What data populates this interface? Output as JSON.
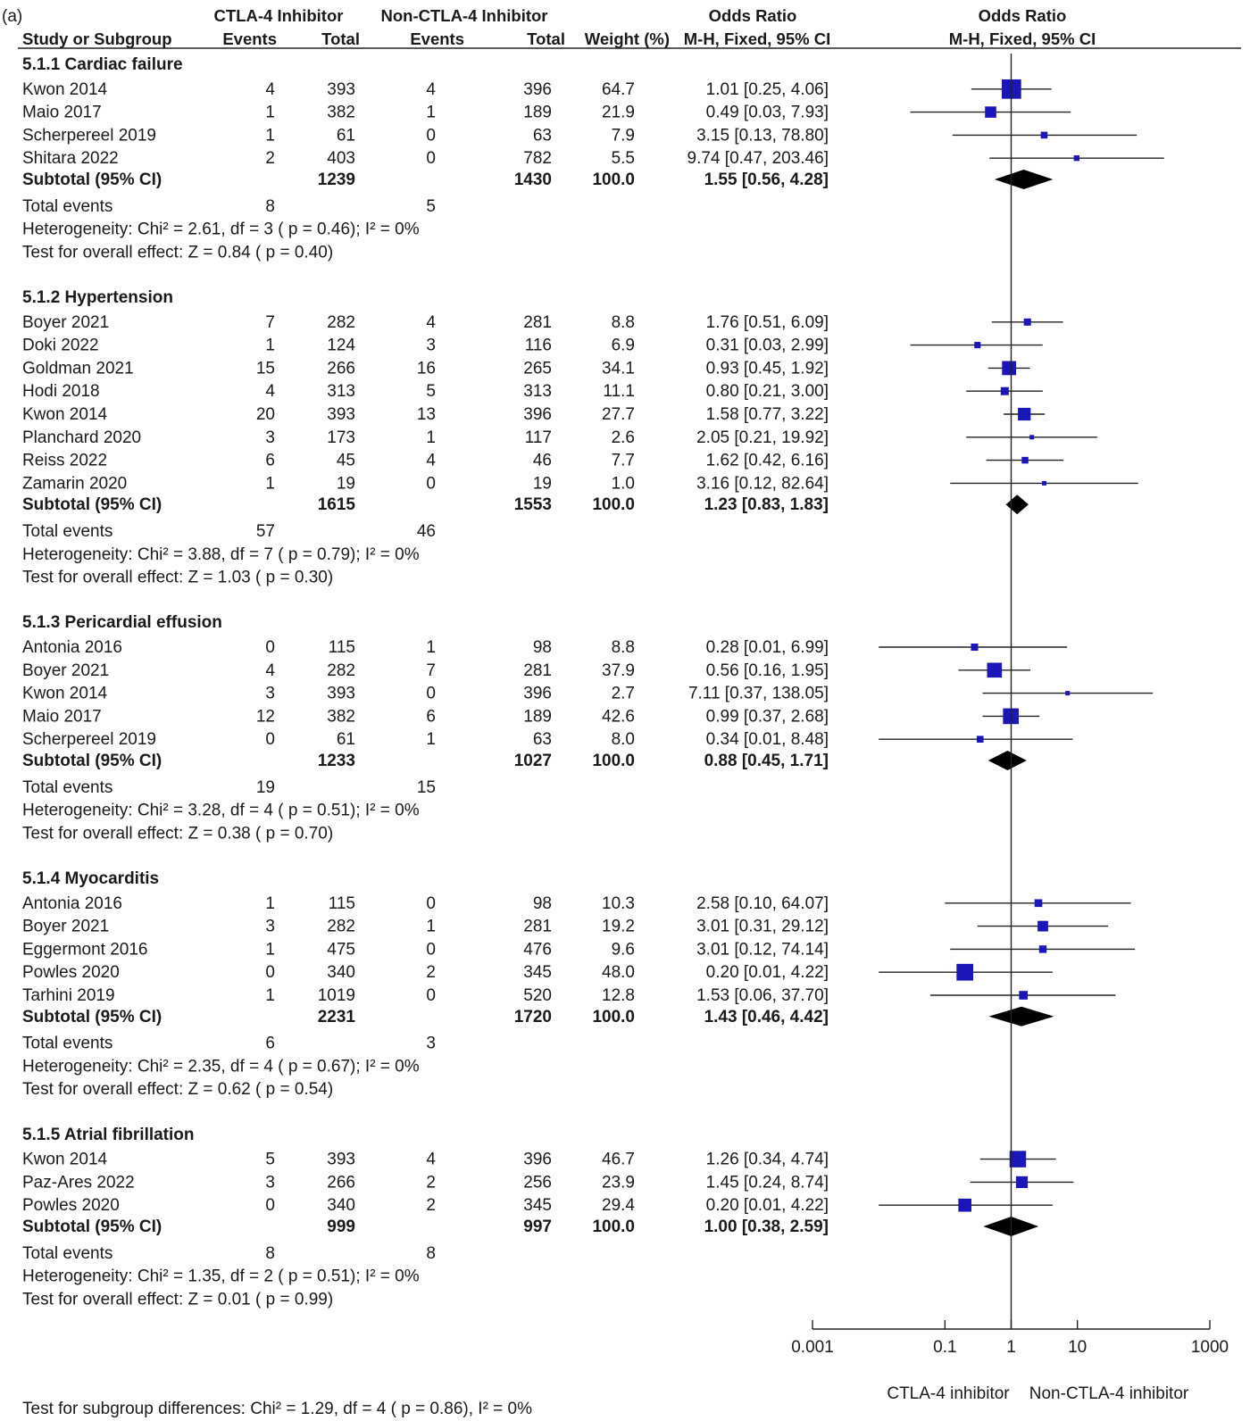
{
  "panel_label": "(a)",
  "header": {
    "group1_title": "CTLA-4 Inhibitor",
    "group2_title": "Non-CTLA-4 Inhibitor",
    "or_text_title": "Odds Ratio",
    "or_plot_title": "Odds Ratio",
    "col_study": "Study or Subgroup",
    "col_events1": "Events",
    "col_total1": "Total",
    "col_events2": "Events",
    "col_total2": "Total",
    "col_weight": "Weight (%)",
    "col_method_text": "M-H, Fixed, 95% CI",
    "col_method_plot": "M-H, Fixed, 95% CI"
  },
  "footer": {
    "subgroup_test": "Test for subgroup differences: Chi² = 1.29, df = 4 ( p = 0.86), I² = 0%",
    "axis_ticks": [
      "0.001",
      "0.1",
      "1",
      "10",
      "1000"
    ],
    "favours_left": "CTLA-4 inhibitor",
    "favours_right": "Non-CTLA-4 inhibitor"
  },
  "colors": {
    "marker": "#1b16b8",
    "diamond": "#000000",
    "line": "#222222"
  },
  "chart_data": {
    "type": "forest",
    "scale": "log",
    "xlim": [
      0.001,
      1000
    ],
    "ticks": [
      0.001,
      0.1,
      1,
      10,
      1000
    ],
    "null_value": 1,
    "subgroups": [
      {
        "title": "5.1.1 Cardiac failure",
        "studies": [
          {
            "name": "Kwon 2014",
            "e1": "4",
            "n1": "393",
            "e2": "4",
            "n2": "396",
            "weight": "64.7",
            "ci_text": "1.01 [0.25, 4.06]",
            "or": 1.01,
            "lo": 0.25,
            "hi": 4.06
          },
          {
            "name": "Maio 2017",
            "e1": "1",
            "n1": "382",
            "e2": "1",
            "n2": "189",
            "weight": "21.9",
            "ci_text": "0.49 [0.03, 7.93]",
            "or": 0.49,
            "lo": 0.03,
            "hi": 7.93
          },
          {
            "name": "Scherpereel 2019",
            "e1": "1",
            "n1": "61",
            "e2": "0",
            "n2": "63",
            "weight": "7.9",
            "ci_text": "3.15 [0.13, 78.80]",
            "or": 3.15,
            "lo": 0.13,
            "hi": 78.8
          },
          {
            "name": "Shitara 2022",
            "e1": "2",
            "n1": "403",
            "e2": "0",
            "n2": "782",
            "weight": "5.5",
            "ci_text": "9.74 [0.47, 203.46]",
            "or": 9.74,
            "lo": 0.47,
            "hi": 203.46
          }
        ],
        "subtotal": {
          "label": "Subtotal (95% CI)",
          "n1": "1239",
          "n2": "1430",
          "weight": "100.0",
          "ci_text": "1.55 [0.56, 4.28]",
          "or": 1.55,
          "lo": 0.56,
          "hi": 4.28
        },
        "total_events": {
          "label": "Total events",
          "e1": "8",
          "e2": "5"
        },
        "heterogeneity": "Heterogeneity: Chi² = 2.61, df = 3 ( p = 0.46); I² = 0%",
        "overall": "Test for overall effect: Z = 0.84 ( p = 0.40)"
      },
      {
        "title": "5.1.2 Hypertension",
        "studies": [
          {
            "name": "Boyer 2021",
            "e1": "7",
            "n1": "282",
            "e2": "4",
            "n2": "281",
            "weight": "8.8",
            "ci_text": "1.76 [0.51, 6.09]",
            "or": 1.76,
            "lo": 0.51,
            "hi": 6.09
          },
          {
            "name": "Doki 2022",
            "e1": "1",
            "n1": "124",
            "e2": "3",
            "n2": "116",
            "weight": "6.9",
            "ci_text": "0.31 [0.03, 2.99]",
            "or": 0.31,
            "lo": 0.03,
            "hi": 2.99
          },
          {
            "name": "Goldman 2021",
            "e1": "15",
            "n1": "266",
            "e2": "16",
            "n2": "265",
            "weight": "34.1",
            "ci_text": "0.93 [0.45, 1.92]",
            "or": 0.93,
            "lo": 0.45,
            "hi": 1.92
          },
          {
            "name": "Hodi 2018",
            "e1": "4",
            "n1": "313",
            "e2": "5",
            "n2": "313",
            "weight": "11.1",
            "ci_text": "0.80 [0.21, 3.00]",
            "or": 0.8,
            "lo": 0.21,
            "hi": 3.0
          },
          {
            "name": "Kwon 2014",
            "e1": "20",
            "n1": "393",
            "e2": "13",
            "n2": "396",
            "weight": "27.7",
            "ci_text": "1.58 [0.77, 3.22]",
            "or": 1.58,
            "lo": 0.77,
            "hi": 3.22
          },
          {
            "name": "Planchard 2020",
            "e1": "3",
            "n1": "173",
            "e2": "1",
            "n2": "117",
            "weight": "2.6",
            "ci_text": "2.05 [0.21, 19.92]",
            "or": 2.05,
            "lo": 0.21,
            "hi": 19.92
          },
          {
            "name": "Reiss 2022",
            "e1": "6",
            "n1": "45",
            "e2": "4",
            "n2": "46",
            "weight": "7.7",
            "ci_text": "1.62 [0.42, 6.16]",
            "or": 1.62,
            "lo": 0.42,
            "hi": 6.16
          },
          {
            "name": "Zamarin 2020",
            "e1": "1",
            "n1": "19",
            "e2": "0",
            "n2": "19",
            "weight": "1.0",
            "ci_text": "3.16 [0.12, 82.64]",
            "or": 3.16,
            "lo": 0.12,
            "hi": 82.64
          }
        ],
        "subtotal": {
          "label": "Subtotal (95% CI)",
          "n1": "1615",
          "n2": "1553",
          "weight": "100.0",
          "ci_text": "1.23 [0.83, 1.83]",
          "or": 1.23,
          "lo": 0.83,
          "hi": 1.83
        },
        "total_events": {
          "label": "Total events",
          "e1": "57",
          "e2": "46"
        },
        "heterogeneity": "Heterogeneity: Chi² = 3.88, df = 7 ( p = 0.79); I² = 0%",
        "overall": "Test for overall effect: Z = 1.03 ( p = 0.30)"
      },
      {
        "title": "5.1.3 Pericardial effusion",
        "studies": [
          {
            "name": "Antonia 2016",
            "e1": "0",
            "n1": "115",
            "e2": "1",
            "n2": "98",
            "weight": "8.8",
            "ci_text": "0.28 [0.01, 6.99]",
            "or": 0.28,
            "lo": 0.01,
            "hi": 6.99
          },
          {
            "name": "Boyer 2021",
            "e1": "4",
            "n1": "282",
            "e2": "7",
            "n2": "281",
            "weight": "37.9",
            "ci_text": "0.56 [0.16, 1.95]",
            "or": 0.56,
            "lo": 0.16,
            "hi": 1.95
          },
          {
            "name": "Kwon 2014",
            "e1": "3",
            "n1": "393",
            "e2": "0",
            "n2": "396",
            "weight": "2.7",
            "ci_text": "7.11 [0.37, 138.05]",
            "or": 7.11,
            "lo": 0.37,
            "hi": 138.05
          },
          {
            "name": "Maio 2017",
            "e1": "12",
            "n1": "382",
            "e2": "6",
            "n2": "189",
            "weight": "42.6",
            "ci_text": "0.99 [0.37, 2.68]",
            "or": 0.99,
            "lo": 0.37,
            "hi": 2.68
          },
          {
            "name": "Scherpereel 2019",
            "e1": "0",
            "n1": "61",
            "e2": "1",
            "n2": "63",
            "weight": "8.0",
            "ci_text": "0.34 [0.01, 8.48]",
            "or": 0.34,
            "lo": 0.01,
            "hi": 8.48
          }
        ],
        "subtotal": {
          "label": "Subtotal (95% CI)",
          "n1": "1233",
          "n2": "1027",
          "weight": "100.0",
          "ci_text": "0.88 [0.45, 1.71]",
          "or": 0.88,
          "lo": 0.45,
          "hi": 1.71
        },
        "total_events": {
          "label": "Total events",
          "e1": "19",
          "e2": "15"
        },
        "heterogeneity": "Heterogeneity: Chi² = 3.28, df = 4 ( p = 0.51); I² = 0%",
        "overall": "Test for overall effect: Z = 0.38 ( p = 0.70)"
      },
      {
        "title": "5.1.4 Myocarditis",
        "studies": [
          {
            "name": "Antonia 2016",
            "e1": "1",
            "n1": "115",
            "e2": "0",
            "n2": "98",
            "weight": "10.3",
            "ci_text": "2.58 [0.10, 64.07]",
            "or": 2.58,
            "lo": 0.1,
            "hi": 64.07
          },
          {
            "name": "Boyer 2021",
            "e1": "3",
            "n1": "282",
            "e2": "1",
            "n2": "281",
            "weight": "19.2",
            "ci_text": "3.01 [0.31, 29.12]",
            "or": 3.01,
            "lo": 0.31,
            "hi": 29.12
          },
          {
            "name": "Eggermont 2016",
            "e1": "1",
            "n1": "475",
            "e2": "0",
            "n2": "476",
            "weight": "9.6",
            "ci_text": "3.01 [0.12, 74.14]",
            "or": 3.01,
            "lo": 0.12,
            "hi": 74.14
          },
          {
            "name": "Powles 2020",
            "e1": "0",
            "n1": "340",
            "e2": "2",
            "n2": "345",
            "weight": "48.0",
            "ci_text": "0.20 [0.01, 4.22]",
            "or": 0.2,
            "lo": 0.01,
            "hi": 4.22
          },
          {
            "name": "Tarhini 2019",
            "e1": "1",
            "n1": "1019",
            "e2": "0",
            "n2": "520",
            "weight": "12.8",
            "ci_text": "1.53 [0.06, 37.70]",
            "or": 1.53,
            "lo": 0.06,
            "hi": 37.7
          }
        ],
        "subtotal": {
          "label": "Subtotal (95% CI)",
          "n1": "2231",
          "n2": "1720",
          "weight": "100.0",
          "ci_text": "1.43 [0.46, 4.42]",
          "or": 1.43,
          "lo": 0.46,
          "hi": 4.42
        },
        "total_events": {
          "label": "Total events",
          "e1": "6",
          "e2": "3"
        },
        "heterogeneity": "Heterogeneity: Chi² = 2.35, df = 4 ( p = 0.67); I² = 0%",
        "overall": "Test for overall effect: Z = 0.62 ( p = 0.54)"
      },
      {
        "title": "5.1.5 Atrial fibrillation",
        "studies": [
          {
            "name": "Kwon 2014",
            "e1": "5",
            "n1": "393",
            "e2": "4",
            "n2": "396",
            "weight": "46.7",
            "ci_text": "1.26 [0.34, 4.74]",
            "or": 1.26,
            "lo": 0.34,
            "hi": 4.74
          },
          {
            "name": "Paz-Ares 2022",
            "e1": "3",
            "n1": "266",
            "e2": "2",
            "n2": "256",
            "weight": "23.9",
            "ci_text": "1.45 [0.24, 8.74]",
            "or": 1.45,
            "lo": 0.24,
            "hi": 8.74
          },
          {
            "name": "Powles 2020",
            "e1": "0",
            "n1": "340",
            "e2": "2",
            "n2": "345",
            "weight": "29.4",
            "ci_text": "0.20 [0.01, 4.22]",
            "or": 0.2,
            "lo": 0.01,
            "hi": 4.22
          }
        ],
        "subtotal": {
          "label": "Subtotal (95% CI)",
          "n1": "999",
          "n2": "997",
          "weight": "100.0",
          "ci_text": "1.00 [0.38, 2.59]",
          "or": 1.0,
          "lo": 0.38,
          "hi": 2.59
        },
        "total_events": {
          "label": "Total events",
          "e1": "8",
          "e2": "8"
        },
        "heterogeneity": "Heterogeneity: Chi² = 1.35, df = 2 ( p = 0.51); I² = 0%",
        "overall": "Test for overall effect: Z = 0.01 ( p = 0.99)"
      }
    ]
  }
}
